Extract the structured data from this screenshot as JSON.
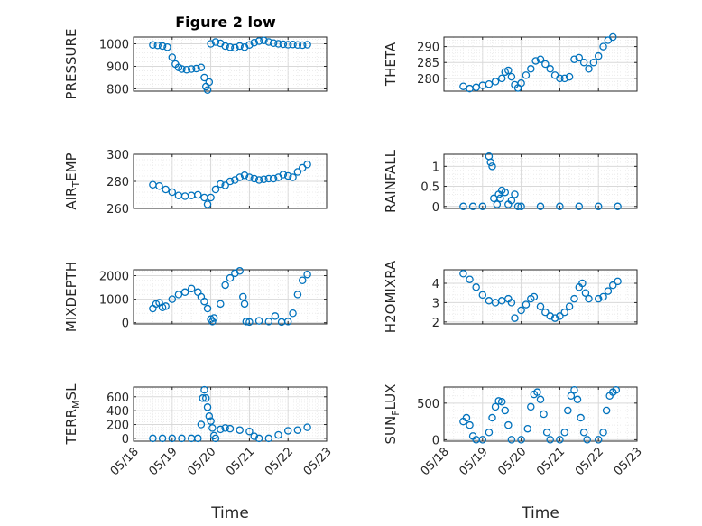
{
  "figure": {
    "title": "Figure 2 low"
  },
  "chart_data": [
    {
      "type": "scatter",
      "name": "pressure",
      "title": "Figure 2 low",
      "ylabel": "PRESSURE",
      "ylabel_main": "PRESSURE",
      "ylabel_sub": "",
      "ylabel_tail": "",
      "xlim": [
        "05/18",
        "05/23"
      ],
      "ylim": [
        790,
        1030
      ],
      "yticks": [
        800,
        900,
        1000
      ],
      "xlabel": "",
      "grid": true,
      "marker": "open-circle",
      "color": "#0072BD",
      "points": [
        [
          "05/18 12:00",
          995
        ],
        [
          "05/18 15:00",
          993
        ],
        [
          "05/18 18:00",
          990
        ],
        [
          "05/18 21:00",
          985
        ],
        [
          "05/19 00:00",
          940
        ],
        [
          "05/19 02:00",
          910
        ],
        [
          "05/19 04:00",
          895
        ],
        [
          "05/19 06:00",
          888
        ],
        [
          "05/19 09:00",
          885
        ],
        [
          "05/19 12:00",
          888
        ],
        [
          "05/19 15:00",
          890
        ],
        [
          "05/19 18:00",
          895
        ],
        [
          "05/19 20:00",
          850
        ],
        [
          "05/19 21:00",
          810
        ],
        [
          "05/19 22:00",
          795
        ],
        [
          "05/19 23:00",
          830
        ],
        [
          "05/20 00:00",
          1000
        ],
        [
          "05/20 03:00",
          1008
        ],
        [
          "05/20 06:00",
          1002
        ],
        [
          "05/20 09:00",
          990
        ],
        [
          "05/20 12:00",
          985
        ],
        [
          "05/20 15:00",
          982
        ],
        [
          "05/20 18:00",
          990
        ],
        [
          "05/20 21:00",
          985
        ],
        [
          "05/21 00:00",
          995
        ],
        [
          "05/21 03:00",
          1005
        ],
        [
          "05/21 06:00",
          1012
        ],
        [
          "05/21 09:00",
          1015
        ],
        [
          "05/21 12:00",
          1008
        ],
        [
          "05/21 15:00",
          1003
        ],
        [
          "05/21 18:00",
          1000
        ],
        [
          "05/21 21:00",
          998
        ],
        [
          "05/22 00:00",
          996
        ],
        [
          "05/22 03:00",
          997
        ],
        [
          "05/22 06:00",
          995
        ],
        [
          "05/22 09:00",
          994
        ],
        [
          "05/22 12:00",
          996
        ]
      ]
    },
    {
      "type": "scatter",
      "name": "theta",
      "ylabel": "THETA",
      "ylabel_main": "THETA",
      "ylabel_sub": "",
      "ylabel_tail": "",
      "xlim": [
        "05/18",
        "05/23"
      ],
      "ylim": [
        276,
        293
      ],
      "yticks": [
        280,
        285,
        290
      ],
      "xlabel": "",
      "grid": true,
      "marker": "open-circle",
      "color": "#0072BD",
      "points": [
        [
          "05/18 12:00",
          277.5
        ],
        [
          "05/18 16:00",
          276.8
        ],
        [
          "05/18 20:00",
          277.2
        ],
        [
          "05/19 00:00",
          277.8
        ],
        [
          "05/19 04:00",
          278.2
        ],
        [
          "05/19 08:00",
          279
        ],
        [
          "05/19 12:00",
          280
        ],
        [
          "05/19 14:00",
          282
        ],
        [
          "05/19 16:00",
          282.5
        ],
        [
          "05/19 18:00",
          280.5
        ],
        [
          "05/19 20:00",
          278
        ],
        [
          "05/19 22:00",
          277
        ],
        [
          "05/20 00:00",
          278.5
        ],
        [
          "05/20 03:00",
          281
        ],
        [
          "05/20 06:00",
          283
        ],
        [
          "05/20 09:00",
          285.5
        ],
        [
          "05/20 12:00",
          286
        ],
        [
          "05/20 15:00",
          284.5
        ],
        [
          "05/20 18:00",
          283
        ],
        [
          "05/20 21:00",
          281
        ],
        [
          "05/21 00:00",
          280
        ],
        [
          "05/21 03:00",
          280
        ],
        [
          "05/21 06:00",
          280.5
        ],
        [
          "05/21 09:00",
          286
        ],
        [
          "05/21 12:00",
          286.5
        ],
        [
          "05/21 15:00",
          285
        ],
        [
          "05/21 18:00",
          283
        ],
        [
          "05/21 21:00",
          285
        ],
        [
          "05/22 00:00",
          287
        ],
        [
          "05/22 03:00",
          290
        ],
        [
          "05/22 06:00",
          292
        ],
        [
          "05/22 09:00",
          293
        ]
      ]
    },
    {
      "type": "scatter",
      "name": "air-temp",
      "ylabel": "AIR_TEMP",
      "ylabel_main": "AIR",
      "ylabel_sub": "T",
      "ylabel_tail": "EMP",
      "xlim": [
        "05/18",
        "05/23"
      ],
      "ylim": [
        260,
        300
      ],
      "yticks": [
        260,
        280,
        300
      ],
      "xlabel": "",
      "grid": true,
      "marker": "open-circle",
      "color": "#0072BD",
      "points": [
        [
          "05/18 12:00",
          277.5
        ],
        [
          "05/18 16:00",
          276.5
        ],
        [
          "05/18 20:00",
          274
        ],
        [
          "05/19 00:00",
          272
        ],
        [
          "05/19 04:00",
          269.5
        ],
        [
          "05/19 08:00",
          269
        ],
        [
          "05/19 12:00",
          269.5
        ],
        [
          "05/19 16:00",
          270
        ],
        [
          "05/19 20:00",
          268
        ],
        [
          "05/19 22:00",
          263
        ],
        [
          "05/20 00:00",
          268
        ],
        [
          "05/20 03:00",
          274
        ],
        [
          "05/20 06:00",
          278
        ],
        [
          "05/20 09:00",
          277
        ],
        [
          "05/20 12:00",
          280
        ],
        [
          "05/20 15:00",
          281
        ],
        [
          "05/20 18:00",
          283
        ],
        [
          "05/20 21:00",
          284.5
        ],
        [
          "05/21 00:00",
          283
        ],
        [
          "05/21 03:00",
          282
        ],
        [
          "05/21 06:00",
          281
        ],
        [
          "05/21 09:00",
          281.5
        ],
        [
          "05/21 12:00",
          282
        ],
        [
          "05/21 15:00",
          282
        ],
        [
          "05/21 18:00",
          283
        ],
        [
          "05/21 21:00",
          285
        ],
        [
          "05/22 00:00",
          284
        ],
        [
          "05/22 03:00",
          283
        ],
        [
          "05/22 06:00",
          287
        ],
        [
          "05/22 09:00",
          290
        ],
        [
          "05/22 12:00",
          292.5
        ]
      ]
    },
    {
      "type": "scatter",
      "name": "rainfall",
      "ylabel": "RAINFALL",
      "ylabel_main": "RAINFALL",
      "ylabel_sub": "",
      "ylabel_tail": "",
      "xlim": [
        "05/18",
        "05/23"
      ],
      "ylim": [
        -0.05,
        1.3
      ],
      "yticks": [
        0,
        0.5,
        1
      ],
      "xlabel": "",
      "grid": true,
      "marker": "open-circle",
      "color": "#0072BD",
      "points": [
        [
          "05/18 12:00",
          0
        ],
        [
          "05/18 18:00",
          0
        ],
        [
          "05/19 00:00",
          0
        ],
        [
          "05/19 04:00",
          1.25
        ],
        [
          "05/19 05:00",
          1.1
        ],
        [
          "05/19 06:00",
          1.0
        ],
        [
          "05/19 07:00",
          0.2
        ],
        [
          "05/19 09:00",
          0.05
        ],
        [
          "05/19 10:00",
          0.3
        ],
        [
          "05/19 11:00",
          0.2
        ],
        [
          "05/19 12:00",
          0.4
        ],
        [
          "05/19 14:00",
          0.35
        ],
        [
          "05/19 16:00",
          0.05
        ],
        [
          "05/19 18:00",
          0.15
        ],
        [
          "05/19 20:00",
          0.3
        ],
        [
          "05/19 22:00",
          0
        ],
        [
          "05/20 00:00",
          0
        ],
        [
          "05/20 12:00",
          0
        ],
        [
          "05/21 00:00",
          0
        ],
        [
          "05/21 12:00",
          0
        ],
        [
          "05/22 00:00",
          0
        ],
        [
          "05/22 12:00",
          0
        ]
      ]
    },
    {
      "type": "scatter",
      "name": "mixdepth",
      "ylabel": "MIXDEPTH",
      "ylabel_main": "MIXDEPTH",
      "ylabel_sub": "",
      "ylabel_tail": "",
      "xlim": [
        "05/18",
        "05/23"
      ],
      "ylim": [
        -50,
        2250
      ],
      "yticks": [
        0,
        1000,
        2000
      ],
      "xlabel": "",
      "grid": true,
      "marker": "open-circle",
      "color": "#0072BD",
      "points": [
        [
          "05/18 12:00",
          600
        ],
        [
          "05/18 14:00",
          800
        ],
        [
          "05/18 16:00",
          850
        ],
        [
          "05/18 18:00",
          650
        ],
        [
          "05/18 20:00",
          700
        ],
        [
          "05/19 00:00",
          1000
        ],
        [
          "05/19 04:00",
          1200
        ],
        [
          "05/19 08:00",
          1300
        ],
        [
          "05/19 12:00",
          1450
        ],
        [
          "05/19 16:00",
          1300
        ],
        [
          "05/19 18:00",
          1100
        ],
        [
          "05/19 20:00",
          900
        ],
        [
          "05/19 22:00",
          600
        ],
        [
          "05/20 00:00",
          150
        ],
        [
          "05/20 01:00",
          50
        ],
        [
          "05/20 02:00",
          200
        ],
        [
          "05/20 06:00",
          800
        ],
        [
          "05/20 09:00",
          1600
        ],
        [
          "05/20 12:00",
          1900
        ],
        [
          "05/20 15:00",
          2100
        ],
        [
          "05/20 18:00",
          2200
        ],
        [
          "05/20 20:00",
          1100
        ],
        [
          "05/20 21:00",
          800
        ],
        [
          "05/20 22:00",
          50
        ],
        [
          "05/21 00:00",
          30
        ],
        [
          "05/21 06:00",
          80
        ],
        [
          "05/21 12:00",
          50
        ],
        [
          "05/21 16:00",
          280
        ],
        [
          "05/21 20:00",
          30
        ],
        [
          "05/22 00:00",
          50
        ],
        [
          "05/22 03:00",
          400
        ],
        [
          "05/22 06:00",
          1200
        ],
        [
          "05/22 09:00",
          1800
        ],
        [
          "05/22 12:00",
          2050
        ]
      ]
    },
    {
      "type": "scatter",
      "name": "h2omixra",
      "ylabel": "H2OMIXRA",
      "ylabel_main": "H2OMIXRA",
      "ylabel_sub": "",
      "ylabel_tail": "",
      "xlim": [
        "05/18",
        "05/23"
      ],
      "ylim": [
        1.9,
        4.7
      ],
      "yticks": [
        2,
        3,
        4
      ],
      "xlabel": "",
      "grid": true,
      "marker": "open-circle",
      "color": "#0072BD",
      "points": [
        [
          "05/18 12:00",
          4.5
        ],
        [
          "05/18 16:00",
          4.2
        ],
        [
          "05/18 20:00",
          3.8
        ],
        [
          "05/19 00:00",
          3.4
        ],
        [
          "05/19 04:00",
          3.1
        ],
        [
          "05/19 08:00",
          3.0
        ],
        [
          "05/19 12:00",
          3.1
        ],
        [
          "05/19 16:00",
          3.2
        ],
        [
          "05/19 18:00",
          3.0
        ],
        [
          "05/19 20:00",
          2.2
        ],
        [
          "05/20 00:00",
          2.6
        ],
        [
          "05/20 03:00",
          2.9
        ],
        [
          "05/20 06:00",
          3.2
        ],
        [
          "05/20 08:00",
          3.3
        ],
        [
          "05/20 12:00",
          2.8
        ],
        [
          "05/20 15:00",
          2.5
        ],
        [
          "05/20 18:00",
          2.3
        ],
        [
          "05/20 21:00",
          2.2
        ],
        [
          "05/21 00:00",
          2.3
        ],
        [
          "05/21 03:00",
          2.5
        ],
        [
          "05/21 06:00",
          2.8
        ],
        [
          "05/21 09:00",
          3.2
        ],
        [
          "05/21 12:00",
          3.8
        ],
        [
          "05/21 14:00",
          4.0
        ],
        [
          "05/21 16:00",
          3.5
        ],
        [
          "05/21 18:00",
          3.2
        ],
        [
          "05/22 00:00",
          3.2
        ],
        [
          "05/22 03:00",
          3.3
        ],
        [
          "05/22 06:00",
          3.6
        ],
        [
          "05/22 09:00",
          3.9
        ],
        [
          "05/22 12:00",
          4.1
        ]
      ]
    },
    {
      "type": "scatter",
      "name": "terr-msl",
      "ylabel": "TERR_MSL",
      "ylabel_main": "TERR",
      "ylabel_sub": "M",
      "ylabel_tail": "SL",
      "xlim": [
        "05/18",
        "05/23"
      ],
      "ylim": [
        -40,
        740
      ],
      "yticks": [
        0,
        200,
        400,
        600
      ],
      "xticks": [
        "05/18",
        "05/19",
        "05/20",
        "05/21",
        "05/22",
        "05/23"
      ],
      "xlabel": "Time",
      "grid": true,
      "marker": "open-circle",
      "color": "#0072BD",
      "points": [
        [
          "05/18 12:00",
          0
        ],
        [
          "05/18 18:00",
          0
        ],
        [
          "05/19 00:00",
          0
        ],
        [
          "05/19 06:00",
          0
        ],
        [
          "05/19 12:00",
          0
        ],
        [
          "05/19 16:00",
          0
        ],
        [
          "05/19 18:00",
          200
        ],
        [
          "05/19 19:00",
          580
        ],
        [
          "05/19 20:00",
          700
        ],
        [
          "05/19 21:00",
          580
        ],
        [
          "05/19 22:00",
          450
        ],
        [
          "05/19 23:00",
          320
        ],
        [
          "05/20 00:00",
          250
        ],
        [
          "05/20 01:00",
          150
        ],
        [
          "05/20 02:00",
          40
        ],
        [
          "05/20 03:00",
          0
        ],
        [
          "05/20 06:00",
          130
        ],
        [
          "05/20 09:00",
          150
        ],
        [
          "05/20 12:00",
          140
        ],
        [
          "05/20 18:00",
          120
        ],
        [
          "05/21 00:00",
          100
        ],
        [
          "05/21 03:00",
          30
        ],
        [
          "05/21 06:00",
          0
        ],
        [
          "05/21 12:00",
          0
        ],
        [
          "05/21 18:00",
          50
        ],
        [
          "05/22 00:00",
          110
        ],
        [
          "05/22 06:00",
          120
        ],
        [
          "05/22 12:00",
          160
        ]
      ]
    },
    {
      "type": "scatter",
      "name": "sun-flux",
      "ylabel": "SUN_FLUX",
      "ylabel_main": "SUN",
      "ylabel_sub": "F",
      "ylabel_tail": "LUX",
      "xlim": [
        "05/18",
        "05/23"
      ],
      "ylim": [
        -20,
        720
      ],
      "yticks": [
        0,
        500
      ],
      "xticks": [
        "05/18",
        "05/19",
        "05/20",
        "05/21",
        "05/22",
        "05/23"
      ],
      "xlabel": "Time",
      "grid": true,
      "marker": "open-circle",
      "color": "#0072BD",
      "points": [
        [
          "05/18 12:00",
          250
        ],
        [
          "05/18 14:00",
          300
        ],
        [
          "05/18 16:00",
          200
        ],
        [
          "05/18 18:00",
          50
        ],
        [
          "05/18 20:00",
          0
        ],
        [
          "05/19 00:00",
          0
        ],
        [
          "05/19 04:00",
          100
        ],
        [
          "05/19 06:00",
          300
        ],
        [
          "05/19 08:00",
          450
        ],
        [
          "05/19 10:00",
          530
        ],
        [
          "05/19 12:00",
          520
        ],
        [
          "05/19 14:00",
          400
        ],
        [
          "05/19 16:00",
          200
        ],
        [
          "05/19 18:00",
          0
        ],
        [
          "05/20 00:00",
          0
        ],
        [
          "05/20 04:00",
          150
        ],
        [
          "05/20 06:00",
          450
        ],
        [
          "05/20 08:00",
          620
        ],
        [
          "05/20 10:00",
          650
        ],
        [
          "05/20 12:00",
          550
        ],
        [
          "05/20 14:00",
          350
        ],
        [
          "05/20 16:00",
          100
        ],
        [
          "05/20 18:00",
          0
        ],
        [
          "05/21 00:00",
          0
        ],
        [
          "05/21 03:00",
          100
        ],
        [
          "05/21 05:00",
          400
        ],
        [
          "05/21 07:00",
          600
        ],
        [
          "05/21 09:00",
          680
        ],
        [
          "05/21 11:00",
          550
        ],
        [
          "05/21 13:00",
          300
        ],
        [
          "05/21 15:00",
          100
        ],
        [
          "05/21 17:00",
          0
        ],
        [
          "05/22 00:00",
          0
        ],
        [
          "05/22 03:00",
          100
        ],
        [
          "05/22 05:00",
          400
        ],
        [
          "05/22 07:00",
          600
        ],
        [
          "05/22 09:00",
          650
        ],
        [
          "05/22 11:00",
          680
        ]
      ]
    }
  ]
}
